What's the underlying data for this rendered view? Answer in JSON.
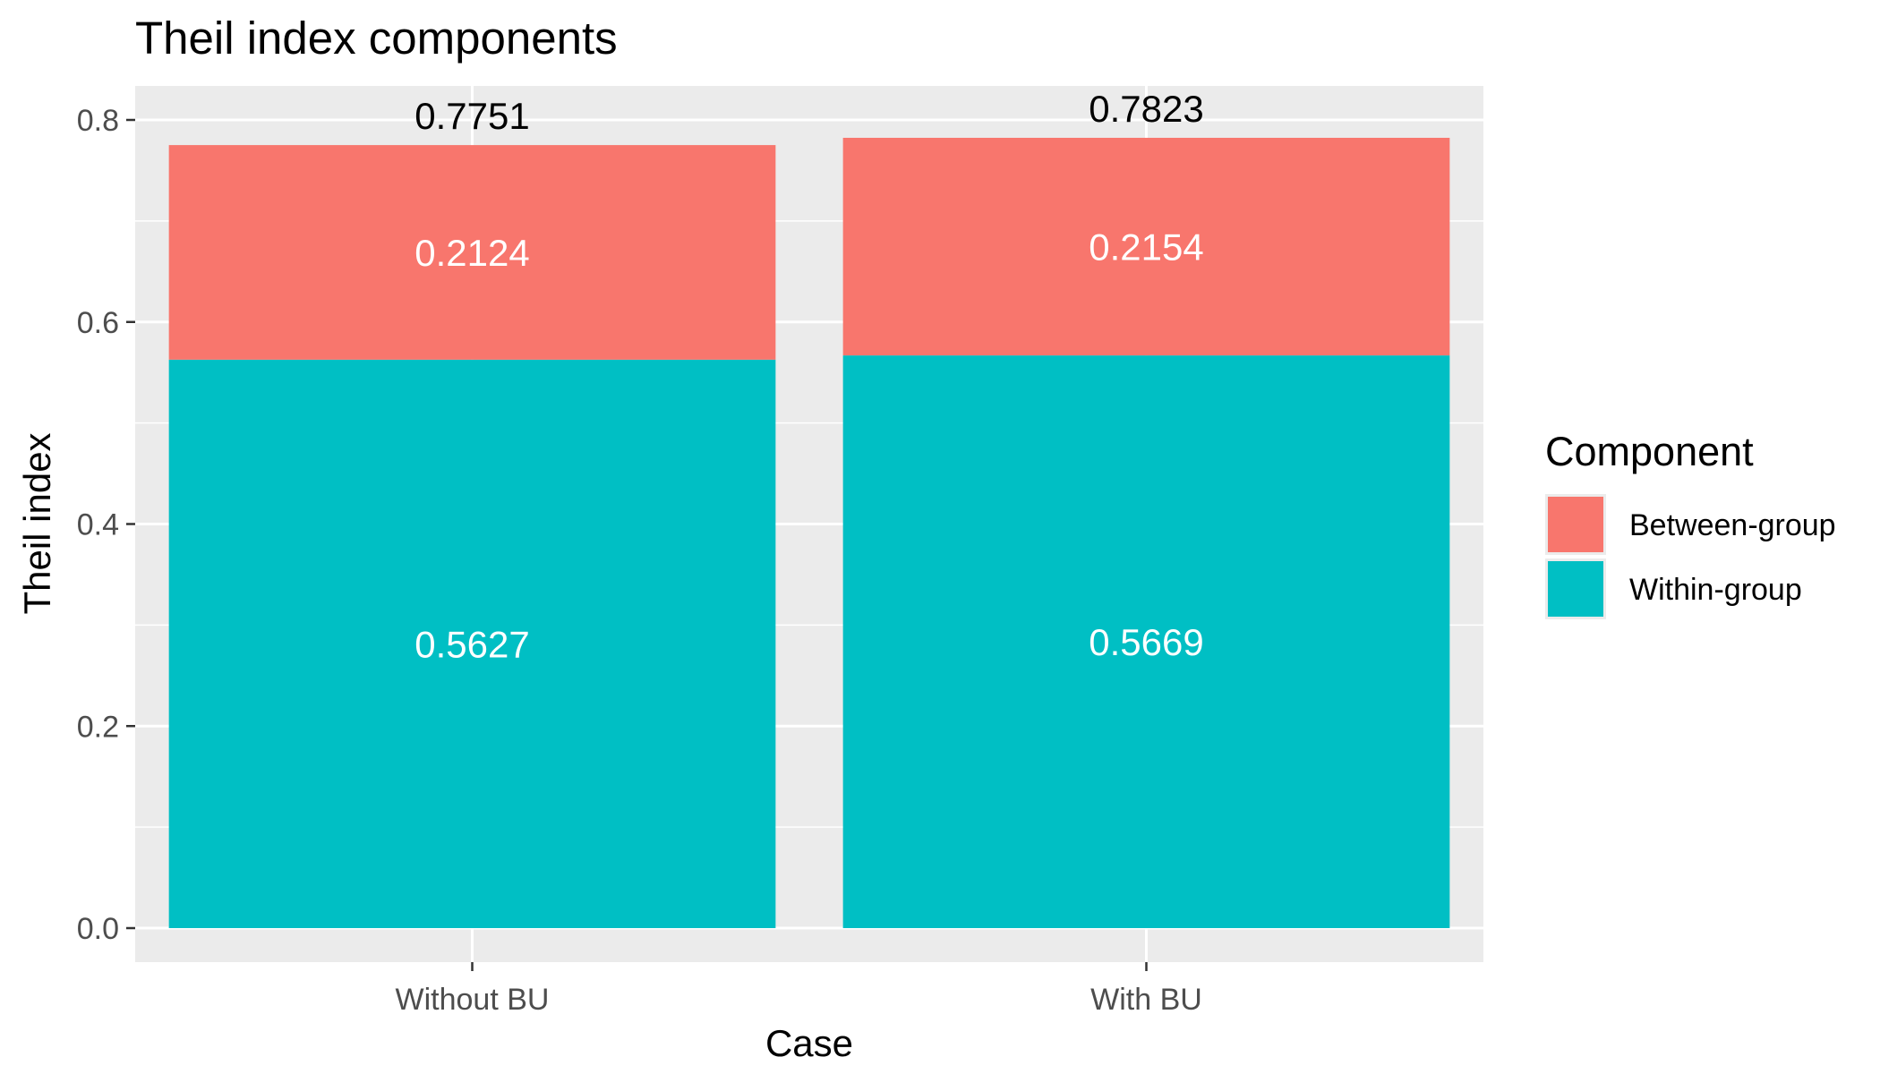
{
  "chart_data": {
    "type": "bar",
    "stacked": true,
    "title": "Theil index components",
    "xlabel": "Case",
    "ylabel": "Theil index",
    "categories": [
      "Without BU",
      "With BU"
    ],
    "series": [
      {
        "name": "Within-group",
        "values": [
          0.5627,
          0.5669
        ],
        "color": "#00BFC4",
        "labels": [
          "0.5627",
          "0.5669"
        ]
      },
      {
        "name": "Between-group",
        "values": [
          0.2124,
          0.2154
        ],
        "color": "#F8766D",
        "labels": [
          "0.2124",
          "0.2154"
        ]
      }
    ],
    "totals": [
      0.7751,
      0.7823
    ],
    "total_labels": [
      "0.7751",
      "0.7823"
    ],
    "ylim": [
      -0.04,
      0.82
    ],
    "yticks": [
      0.0,
      0.2,
      0.4,
      0.6,
      0.8
    ],
    "ytick_labels": [
      "0.0",
      "0.2",
      "0.4",
      "0.6",
      "0.8"
    ],
    "grid": true,
    "panel_background": "#EBEBEB",
    "legend": {
      "title": "Component",
      "position": "right",
      "entries": [
        "Between-group",
        "Within-group"
      ]
    }
  }
}
